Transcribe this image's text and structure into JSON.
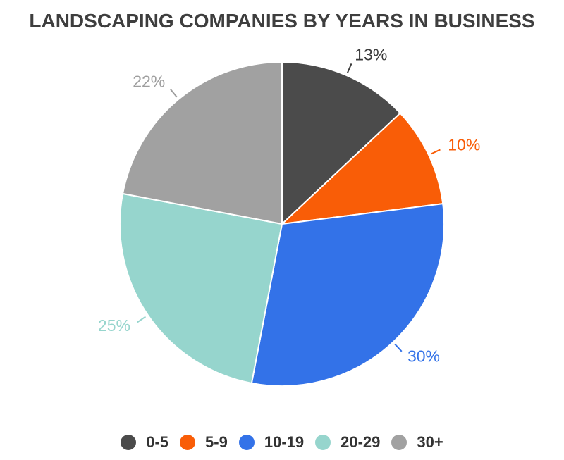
{
  "chart_data": {
    "type": "pie",
    "title": "LANDSCAPING COMPANIES BY YEARS IN BUSINESS",
    "title_color": "#3E3E3E",
    "background_color": "#FFFFFF",
    "start_angle_deg": 0,
    "direction": "clockwise",
    "legend_position": "bottom",
    "legend_marker": "circle",
    "label_style": "percent-outside-with-leader-line",
    "slices": [
      {
        "label": "0-5",
        "value": 13,
        "percent_label": "13%",
        "color": "#4B4B4B",
        "label_color": "#3B3B3B"
      },
      {
        "label": "5-9",
        "value": 10,
        "percent_label": "10%",
        "color": "#F95D07",
        "label_color": "#F95D07"
      },
      {
        "label": "10-19",
        "value": 30,
        "percent_label": "30%",
        "color": "#3372E8",
        "label_color": "#3372E8"
      },
      {
        "label": "20-29",
        "value": 25,
        "percent_label": "25%",
        "color": "#96D5CD",
        "label_color": "#96D5CD"
      },
      {
        "label": "30+",
        "value": 22,
        "percent_label": "22%",
        "color": "#A1A1A1",
        "label_color": "#9E9E9E"
      }
    ]
  }
}
